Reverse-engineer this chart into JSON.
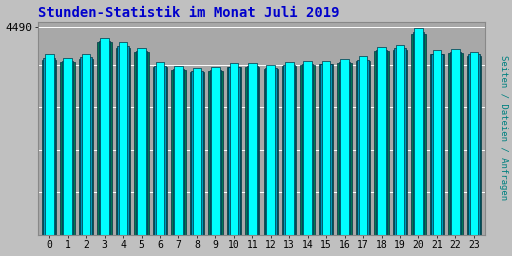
{
  "title": "Stunden-Statistik im Monat Juli 2019",
  "title_color": "#0000cc",
  "ylabel": "Seiten / Dateien / Anfragen",
  "ylabel_color": "#008080",
  "background_color": "#c0c0c0",
  "plot_bg_color": "#a8a8a8",
  "categories": [
    0,
    1,
    2,
    3,
    4,
    5,
    6,
    7,
    8,
    9,
    10,
    11,
    12,
    13,
    14,
    15,
    16,
    17,
    18,
    19,
    20,
    21,
    22,
    23
  ],
  "values_main": [
    3900,
    3830,
    3900,
    4260,
    4160,
    4050,
    3730,
    3660,
    3610,
    3640,
    3710,
    3720,
    3680,
    3740,
    3760,
    3770,
    3800,
    3860,
    4060,
    4100,
    4480,
    3990,
    4020,
    3960
  ],
  "values_secondary": [
    3820,
    3760,
    3840,
    4200,
    4080,
    3980,
    3660,
    3590,
    3550,
    3570,
    3640,
    3650,
    3610,
    3680,
    3690,
    3705,
    3745,
    3790,
    3990,
    4030,
    4380,
    3920,
    3960,
    3900
  ],
  "values_tertiary": [
    3780,
    3730,
    3810,
    4170,
    4050,
    3950,
    3640,
    3565,
    3530,
    3545,
    3620,
    3635,
    3590,
    3660,
    3670,
    3685,
    3725,
    3770,
    3965,
    4005,
    4340,
    3900,
    3935,
    3875
  ],
  "bar_color_main": "#00ffff",
  "bar_color_secondary": "#0099bb",
  "bar_color_tertiary": "#007755",
  "bar_edge_color": "#003344",
  "ytick_val": 4490,
  "ymin": 0,
  "ymax": 4600,
  "grid_levels": [
    0,
    920,
    1840,
    2760,
    3680,
    4490
  ],
  "grid_color": "#bbbbbb"
}
